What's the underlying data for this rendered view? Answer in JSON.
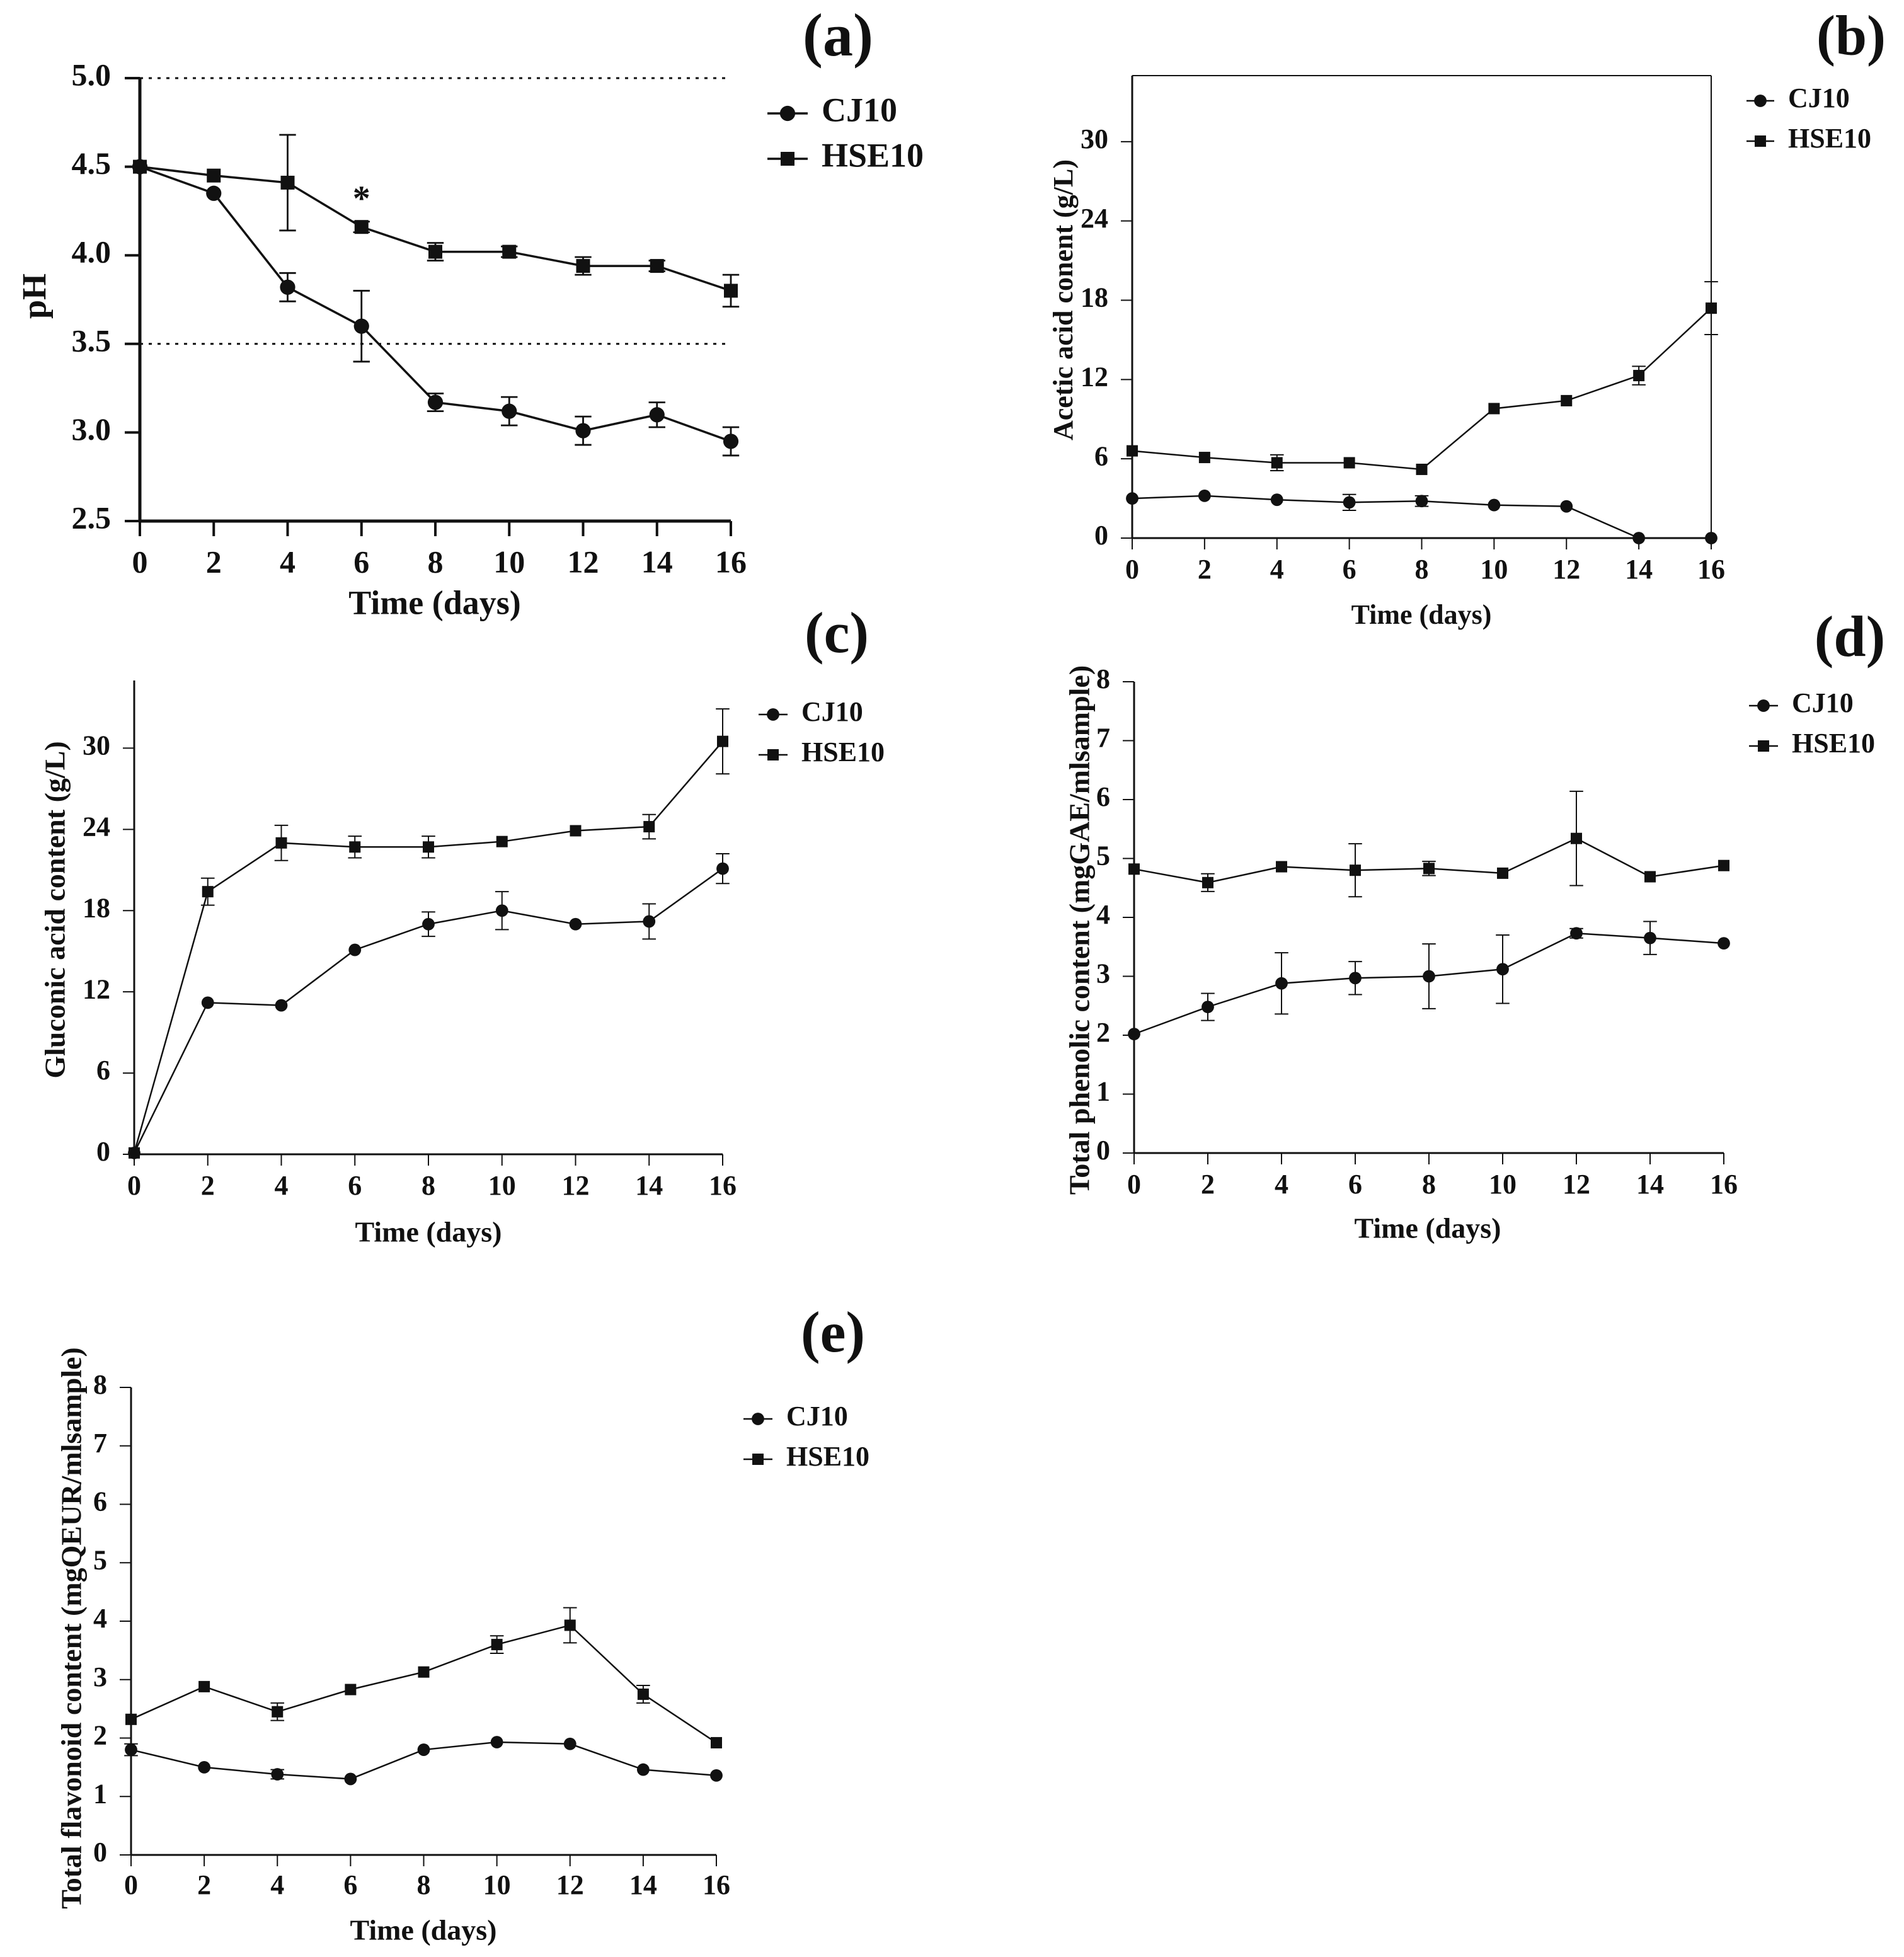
{
  "chart_data": [
    {
      "type": "line",
      "panel_label": "(a)",
      "xlabel": "Time (days)",
      "ylabel": "pH",
      "xlim": [
        0,
        16
      ],
      "ylim": [
        2.5,
        5.0
      ],
      "xticks": [
        0,
        2,
        4,
        6,
        8,
        10,
        12,
        14,
        16
      ],
      "yticks": [
        "2.5",
        "3.0",
        "3.5",
        "4.0",
        "4.5",
        "5.0"
      ],
      "ytick_values": [
        2.5,
        3.0,
        3.5,
        4.0,
        4.5,
        5.0
      ],
      "reference_lines": [
        5.0,
        3.5
      ],
      "annotation": {
        "text": "*",
        "x": 6,
        "y": 4.3
      },
      "legend_position": "right",
      "x": [
        0,
        2,
        4,
        6,
        8,
        10,
        12,
        14,
        16
      ],
      "series": [
        {
          "name": "CJ10",
          "marker": "circle",
          "values": [
            4.5,
            4.35,
            3.82,
            3.6,
            3.17,
            3.12,
            3.01,
            3.1,
            2.95
          ],
          "errors": [
            0,
            0,
            0.08,
            0.2,
            0.05,
            0.08,
            0.08,
            0.07,
            0.08
          ]
        },
        {
          "name": "HSE10",
          "marker": "square",
          "values": [
            4.5,
            4.45,
            4.41,
            4.16,
            4.02,
            4.02,
            3.94,
            3.94,
            3.8
          ],
          "errors": [
            0,
            0,
            0.27,
            0.03,
            0.05,
            0.03,
            0.05,
            0.03,
            0.09
          ]
        }
      ]
    },
    {
      "type": "line",
      "panel_label": "(b)",
      "xlabel": "Time (days)",
      "ylabel": "Acetic acid conent (g/L)",
      "xlim": [
        0,
        16
      ],
      "ylim": [
        0,
        35
      ],
      "xticks": [
        0,
        2,
        4,
        6,
        8,
        10,
        12,
        14,
        16
      ],
      "yticks": [
        "0",
        "6",
        "12",
        "18",
        "24",
        "30"
      ],
      "ytick_values": [
        0,
        6,
        12,
        18,
        24,
        30
      ],
      "legend_position": "top-right",
      "x": [
        0,
        2,
        4,
        6,
        8,
        10,
        12,
        14,
        16
      ],
      "series": [
        {
          "name": "CJ10",
          "marker": "circle",
          "values": [
            3.0,
            3.2,
            2.9,
            2.7,
            2.8,
            2.5,
            2.4,
            0.0,
            0.0
          ],
          "errors": [
            0,
            0,
            0,
            0.6,
            0.4,
            0,
            0,
            0,
            0
          ]
        },
        {
          "name": "HSE10",
          "marker": "square",
          "values": [
            6.6,
            6.1,
            5.7,
            5.7,
            5.2,
            9.8,
            10.4,
            12.3,
            17.4
          ],
          "errors": [
            0,
            0,
            0.6,
            0,
            0,
            0,
            0,
            0.7,
            2.0
          ]
        }
      ]
    },
    {
      "type": "line",
      "panel_label": "(c)",
      "xlabel": "Time (days)",
      "ylabel": "Gluconic acid content (g/L)",
      "xlim": [
        0,
        16
      ],
      "ylim": [
        0,
        35
      ],
      "xticks": [
        0,
        2,
        4,
        6,
        8,
        10,
        12,
        14,
        16
      ],
      "yticks": [
        "0",
        "6",
        "12",
        "18",
        "24",
        "30"
      ],
      "ytick_values": [
        0,
        6,
        12,
        18,
        24,
        30
      ],
      "legend_position": "top-right",
      "x": [
        0,
        2,
        4,
        6,
        8,
        10,
        12,
        14,
        16
      ],
      "series": [
        {
          "name": "CJ10",
          "marker": "circle",
          "values": [
            0.1,
            11.2,
            11.0,
            15.1,
            17.0,
            18.0,
            17.0,
            17.2,
            21.1
          ],
          "errors": [
            0,
            0,
            0,
            0,
            0.9,
            1.4,
            0,
            1.3,
            1.1
          ]
        },
        {
          "name": "HSE10",
          "marker": "square",
          "values": [
            0.1,
            19.4,
            23.0,
            22.7,
            22.7,
            23.1,
            23.9,
            24.2,
            30.5
          ],
          "errors": [
            0,
            1.0,
            1.3,
            0.8,
            0.8,
            0,
            0,
            0.9,
            2.4
          ]
        }
      ]
    },
    {
      "type": "line",
      "panel_label": "(d)",
      "xlabel": "Time (days)",
      "ylabel": "Total phenolic content (mgGAE/mlsample)",
      "xlim": [
        0,
        16
      ],
      "ylim": [
        0,
        8
      ],
      "xticks": [
        0,
        2,
        4,
        6,
        8,
        10,
        12,
        14,
        16
      ],
      "yticks": [
        "0",
        "1",
        "2",
        "3",
        "4",
        "5",
        "6",
        "7",
        "8"
      ],
      "ytick_values": [
        0,
        1,
        2,
        3,
        4,
        5,
        6,
        7,
        8
      ],
      "legend_position": "top-right",
      "x": [
        0,
        2,
        4,
        6,
        8,
        10,
        12,
        14,
        16
      ],
      "series": [
        {
          "name": "CJ10",
          "marker": "circle",
          "values": [
            2.02,
            2.48,
            2.88,
            2.97,
            3.0,
            3.12,
            3.73,
            3.65,
            3.56
          ],
          "errors": [
            0,
            0.23,
            0.52,
            0.28,
            0.55,
            0.58,
            0.08,
            0.28,
            0
          ]
        },
        {
          "name": "HSE10",
          "marker": "square",
          "values": [
            4.82,
            4.59,
            4.86,
            4.8,
            4.83,
            4.75,
            5.34,
            4.69,
            4.88
          ],
          "errors": [
            0,
            0.15,
            0,
            0.45,
            0.12,
            0,
            0.8,
            0,
            0
          ]
        }
      ]
    },
    {
      "type": "line",
      "panel_label": "(e)",
      "xlabel": "Time (days)",
      "ylabel": "Total flavonoid content (mgQEUR/mlsample)",
      "xlim": [
        0,
        16
      ],
      "ylim": [
        0,
        8
      ],
      "xticks": [
        0,
        2,
        4,
        6,
        8,
        10,
        12,
        14,
        16
      ],
      "yticks": [
        "0",
        "1",
        "2",
        "3",
        "4",
        "5",
        "6",
        "7",
        "8"
      ],
      "ytick_values": [
        0,
        1,
        2,
        3,
        4,
        5,
        6,
        7,
        8
      ],
      "legend_position": "top-right",
      "x": [
        0,
        2,
        4,
        6,
        8,
        10,
        12,
        14,
        16
      ],
      "series": [
        {
          "name": "CJ10",
          "marker": "circle",
          "values": [
            1.8,
            1.5,
            1.38,
            1.3,
            1.8,
            1.93,
            1.9,
            1.46,
            1.36
          ],
          "errors": [
            0.1,
            0,
            0.08,
            0,
            0,
            0,
            0,
            0,
            0
          ]
        },
        {
          "name": "HSE10",
          "marker": "square",
          "values": [
            2.32,
            2.88,
            2.45,
            2.83,
            3.13,
            3.6,
            3.93,
            2.75,
            1.92
          ],
          "errors": [
            0,
            0,
            0.15,
            0,
            0,
            0.15,
            0.3,
            0.15,
            0
          ]
        }
      ]
    }
  ]
}
